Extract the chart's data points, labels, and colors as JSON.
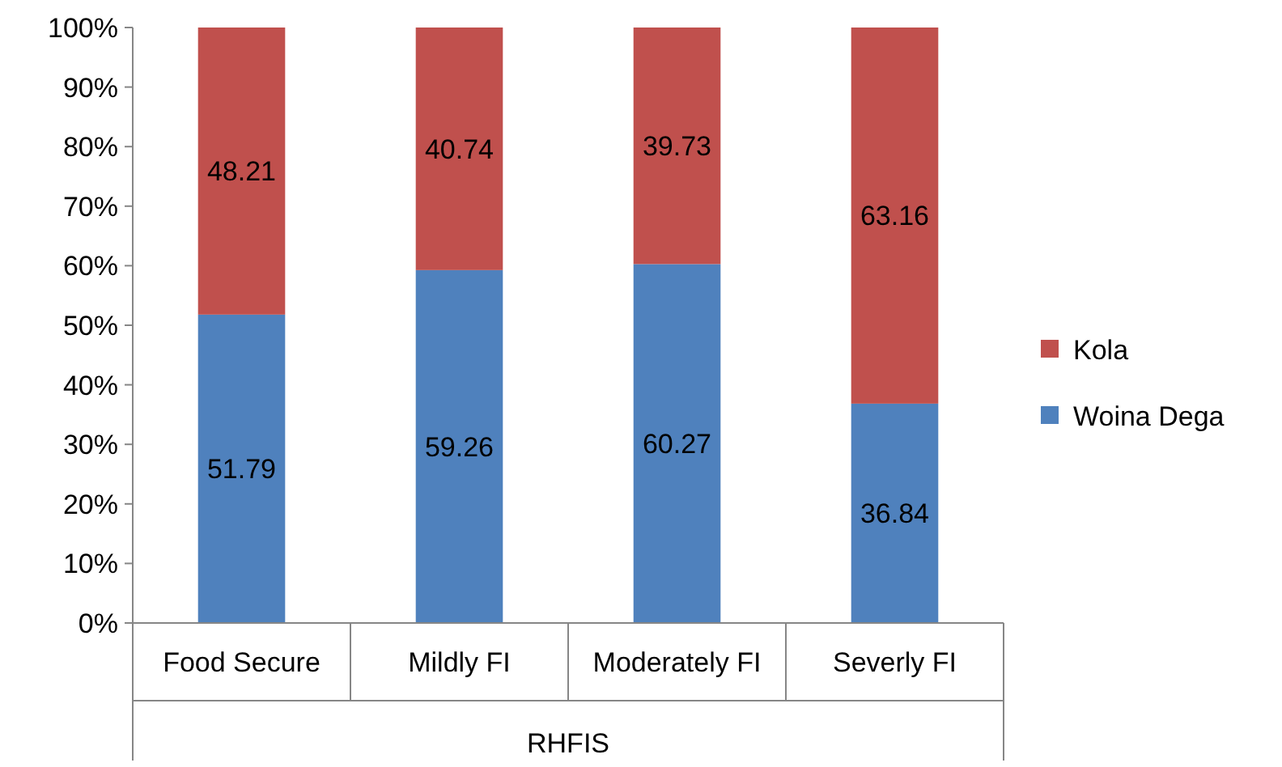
{
  "chart_data": {
    "type": "bar",
    "stacked": true,
    "xlabel": "RHFIS",
    "categories": [
      "Food Secure",
      "Mildly FI",
      "Moderately FI",
      "Severly FI"
    ],
    "series": [
      {
        "name": "Woina Dega",
        "color": "#4f81bd",
        "values": [
          51.79,
          59.26,
          60.27,
          36.84
        ]
      },
      {
        "name": "Kola",
        "color": "#c0504d",
        "values": [
          48.21,
          40.74,
          39.73,
          63.16
        ]
      }
    ],
    "ylim": [
      0,
      100
    ],
    "yticks": [
      {
        "value": 0,
        "label": "0%"
      },
      {
        "value": 10,
        "label": "10%"
      },
      {
        "value": 20,
        "label": "20%"
      },
      {
        "value": 30,
        "label": "30%"
      },
      {
        "value": 40,
        "label": "40%"
      },
      {
        "value": 50,
        "label": "50%"
      },
      {
        "value": 60,
        "label": "60%"
      },
      {
        "value": 70,
        "label": "70%"
      },
      {
        "value": 80,
        "label": "80%"
      },
      {
        "value": 90,
        "label": "90%"
      },
      {
        "value": 100,
        "label": "100%"
      }
    ],
    "data_labels": true,
    "legend": "right",
    "grid": false
  }
}
